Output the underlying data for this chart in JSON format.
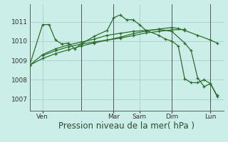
{
  "background_color": "#cceee8",
  "grid_color": "#aad4cc",
  "line_color": "#2d6e2d",
  "xlabel": "Pression niveau de la mer( hPa )",
  "xlabel_fontsize": 8.5,
  "yticks": [
    1007,
    1008,
    1009,
    1010,
    1011
  ],
  "ylim": [
    1006.4,
    1011.9
  ],
  "xlim": [
    0,
    30
  ],
  "xtick_labels": [
    "Ven",
    "Mar",
    "Sam",
    "Dim",
    "",
    "Lun"
  ],
  "vlines": [
    8,
    13,
    22,
    28
  ],
  "series": [
    {
      "x": [
        0,
        2,
        4,
        6,
        8,
        10,
        12,
        14,
        16,
        18,
        20,
        22,
        23,
        24,
        26,
        28,
        29
      ],
      "y": [
        1008.75,
        1009.1,
        1009.35,
        1009.55,
        1009.75,
        1009.9,
        1010.05,
        1010.2,
        1010.38,
        1010.52,
        1010.62,
        1010.7,
        1010.65,
        1010.55,
        1010.3,
        1010.05,
        1009.9
      ]
    },
    {
      "x": [
        2,
        4,
        6,
        8,
        10,
        12,
        14,
        16,
        18,
        20,
        22,
        24
      ],
      "y": [
        1009.25,
        1009.5,
        1009.7,
        1009.85,
        1009.95,
        1010.05,
        1010.15,
        1010.28,
        1010.42,
        1010.5,
        1010.58,
        1010.6
      ]
    },
    {
      "x": [
        0,
        2,
        3,
        4,
        5,
        6,
        7,
        8,
        10,
        12,
        13,
        14,
        15,
        16,
        17,
        18,
        20,
        21,
        22,
        23,
        24,
        25,
        26,
        27,
        28,
        29
      ],
      "y": [
        1008.75,
        1010.85,
        1010.85,
        1010.05,
        1009.85,
        1009.9,
        1009.6,
        1009.85,
        1010.25,
        1010.55,
        1011.2,
        1011.35,
        1011.1,
        1011.1,
        1010.85,
        1010.55,
        1010.3,
        1010.1,
        1010.0,
        1009.75,
        1008.05,
        1007.85,
        1007.85,
        1008.0,
        1007.8,
        1007.2
      ]
    },
    {
      "x": [
        0,
        2,
        4,
        6,
        8,
        10,
        12,
        14,
        16,
        18,
        20,
        22,
        24,
        25,
        26,
        27,
        28,
        29
      ],
      "y": [
        1008.75,
        1009.3,
        1009.6,
        1009.8,
        1009.95,
        1010.1,
        1010.3,
        1010.4,
        1010.5,
        1010.55,
        1010.6,
        1010.5,
        1009.9,
        1009.5,
        1008.1,
        1007.65,
        1007.8,
        1007.15
      ]
    }
  ]
}
